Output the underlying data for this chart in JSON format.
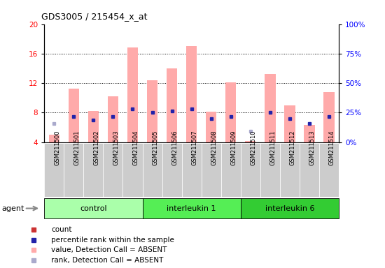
{
  "title": "GDS3005 / 215454_x_at",
  "samples": [
    "GSM211500",
    "GSM211501",
    "GSM211502",
    "GSM211503",
    "GSM211504",
    "GSM211505",
    "GSM211506",
    "GSM211507",
    "GSM211508",
    "GSM211509",
    "GSM211510",
    "GSM211511",
    "GSM211512",
    "GSM211513",
    "GSM211514"
  ],
  "groups": [
    {
      "name": "control",
      "color": "#aaffaa",
      "start": 0,
      "end": 5
    },
    {
      "name": "interleukin 1",
      "color": "#55ee55",
      "start": 5,
      "end": 10
    },
    {
      "name": "interleukin 6",
      "color": "#33cc33",
      "start": 10,
      "end": 15
    }
  ],
  "bar_values": [
    5.0,
    11.2,
    8.2,
    10.2,
    16.8,
    12.4,
    14.0,
    17.0,
    8.1,
    12.1,
    4.1,
    13.2,
    9.0,
    6.3,
    10.8
  ],
  "rank_values": [
    6.5,
    7.5,
    7.0,
    7.5,
    8.5,
    8.0,
    8.2,
    8.5,
    7.2,
    7.5,
    5.5,
    8.0,
    7.2,
    6.5,
    7.5
  ],
  "absent_bar": [
    true,
    true,
    true,
    true,
    true,
    true,
    true,
    true,
    true,
    true,
    true,
    true,
    true,
    true,
    true
  ],
  "absent_rank": [
    true,
    false,
    false,
    false,
    false,
    false,
    false,
    false,
    false,
    false,
    true,
    false,
    false,
    false,
    false
  ],
  "ylim_left": [
    4,
    20
  ],
  "ylim_right": [
    0,
    100
  ],
  "yticks_left": [
    4,
    8,
    12,
    16,
    20
  ],
  "yticks_right": [
    0,
    25,
    50,
    75,
    100
  ],
  "color_bar_present": "#cc3333",
  "color_bar_absent": "#ffaaaa",
  "color_rank_present": "#2222aa",
  "color_rank_absent": "#aaaacc",
  "bg_plot": "#ffffff",
  "agent_label": "agent",
  "bar_width": 0.55,
  "figsize": [
    5.5,
    3.84
  ],
  "dpi": 100
}
